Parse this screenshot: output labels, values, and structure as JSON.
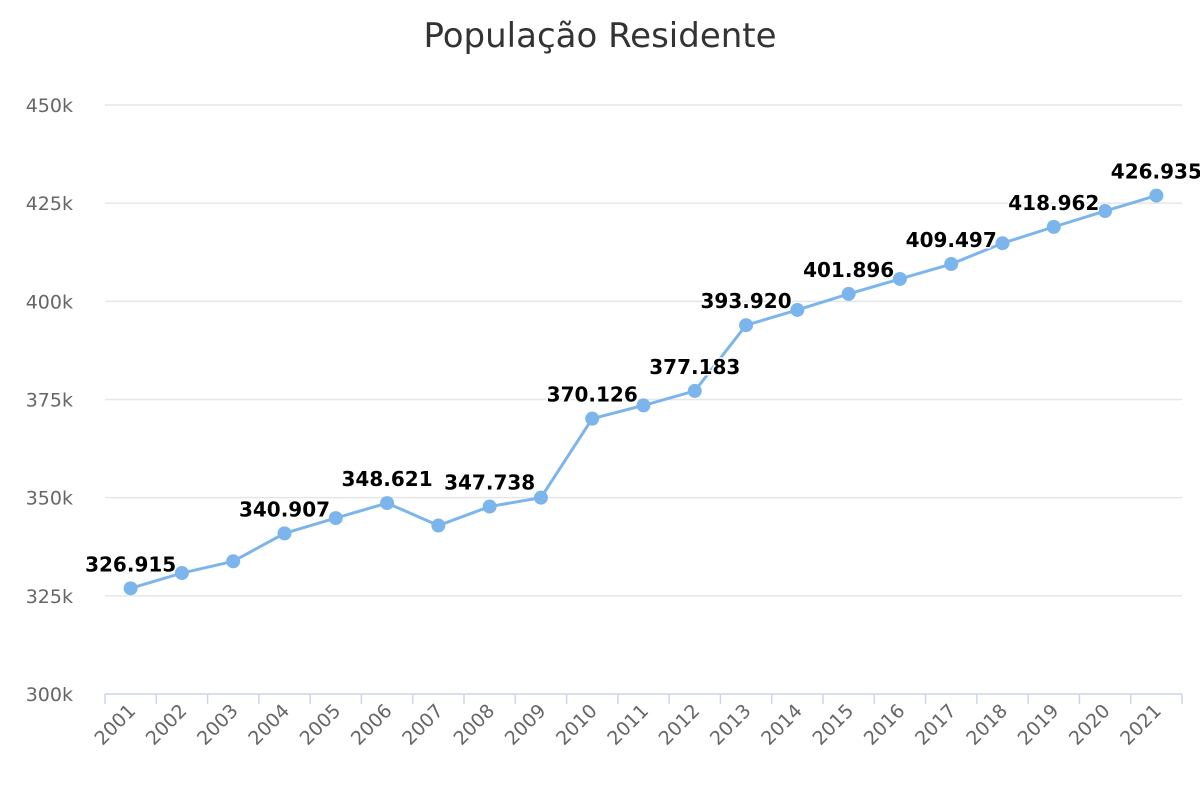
{
  "chart_data": {
    "type": "line",
    "title": "População Residente",
    "xlabel": "",
    "ylabel": "",
    "categories": [
      "2001",
      "2002",
      "2003",
      "2004",
      "2005",
      "2006",
      "2007",
      "2008",
      "2009",
      "2010",
      "2011",
      "2012",
      "2013",
      "2014",
      "2015",
      "2016",
      "2017",
      "2018",
      "2019",
      "2020",
      "2021"
    ],
    "series": [
      {
        "values": [
          326915,
          330800,
          333800,
          340907,
          344800,
          348621,
          342900,
          347738,
          350000,
          370126,
          373500,
          377183,
          393920,
          397800,
          401896,
          405700,
          409497,
          414800,
          418962,
          423000,
          426935
        ],
        "data_labels": [
          "326.915",
          "",
          "",
          "340.907",
          "",
          "348.621",
          "",
          "347.738",
          "",
          "370.126",
          "",
          "377.183",
          "393.920",
          "",
          "401.896",
          "",
          "409.497",
          "",
          "418.962",
          "",
          "426.935"
        ]
      }
    ],
    "ylim": [
      300000,
      450000
    ],
    "y_ticks": [
      300000,
      325000,
      350000,
      375000,
      400000,
      425000,
      450000
    ],
    "y_tick_labels": [
      "300k",
      "325k",
      "350k",
      "375k",
      "400k",
      "425k",
      "450k"
    ],
    "grid": true,
    "legend": "none",
    "colors": {
      "series": "#7cb5ec",
      "grid": "#e6e6e6",
      "axis": "#ccd6eb",
      "tick_text": "#666666",
      "title_text": "#333333",
      "label_text": "#000000"
    }
  }
}
